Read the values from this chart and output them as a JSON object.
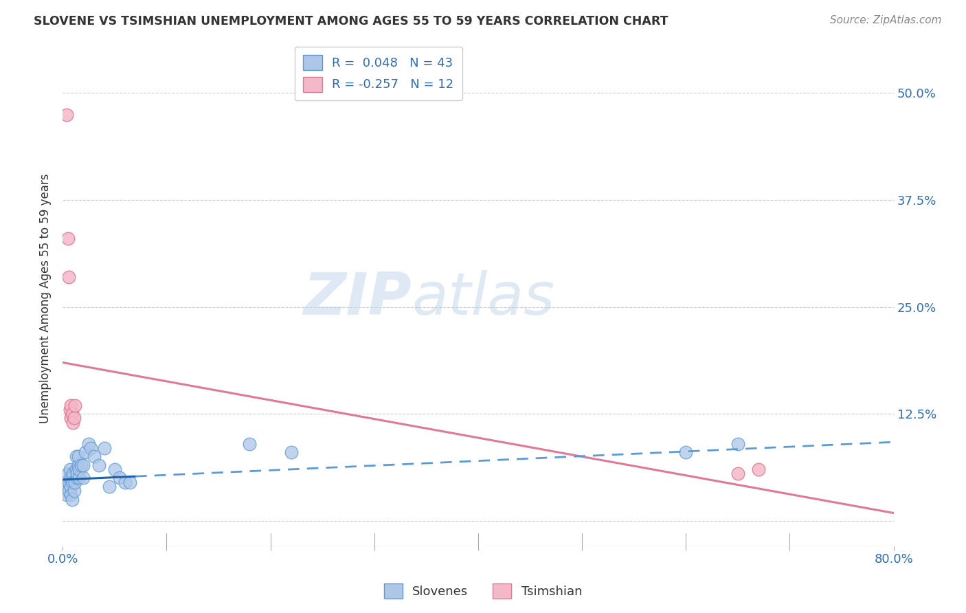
{
  "title": "SLOVENE VS TSIMSHIAN UNEMPLOYMENT AMONG AGES 55 TO 59 YEARS CORRELATION CHART",
  "source": "Source: ZipAtlas.com",
  "ylabel": "Unemployment Among Ages 55 to 59 years",
  "xlim": [
    0.0,
    0.8
  ],
  "ylim": [
    -0.03,
    0.55
  ],
  "xticks": [
    0.0,
    0.1,
    0.2,
    0.3,
    0.4,
    0.5,
    0.6,
    0.7,
    0.8
  ],
  "xticklabels": [
    "0.0%",
    "",
    "",
    "",
    "",
    "",
    "",
    "",
    "80.0%"
  ],
  "ytick_positions": [
    0.0,
    0.125,
    0.25,
    0.375,
    0.5
  ],
  "yticklabels": [
    "",
    "12.5%",
    "25.0%",
    "37.5%",
    "50.0%"
  ],
  "slovene_x": [
    0.0,
    0.003,
    0.004,
    0.005,
    0.005,
    0.006,
    0.006,
    0.007,
    0.007,
    0.008,
    0.008,
    0.009,
    0.009,
    0.01,
    0.01,
    0.011,
    0.012,
    0.013,
    0.013,
    0.014,
    0.014,
    0.015,
    0.015,
    0.016,
    0.016,
    0.018,
    0.02,
    0.02,
    0.022,
    0.025,
    0.027,
    0.03,
    0.035,
    0.04,
    0.045,
    0.05,
    0.055,
    0.06,
    0.065,
    0.18,
    0.22,
    0.6,
    0.65
  ],
  "slovene_y": [
    0.035,
    0.04,
    0.03,
    0.055,
    0.04,
    0.045,
    0.035,
    0.06,
    0.05,
    0.04,
    0.03,
    0.025,
    0.05,
    0.055,
    0.045,
    0.035,
    0.045,
    0.06,
    0.075,
    0.05,
    0.055,
    0.065,
    0.075,
    0.05,
    0.06,
    0.065,
    0.05,
    0.065,
    0.08,
    0.09,
    0.085,
    0.075,
    0.065,
    0.085,
    0.04,
    0.06,
    0.05,
    0.045,
    0.045,
    0.09,
    0.08,
    0.08,
    0.09
  ],
  "tsimshian_x": [
    0.004,
    0.005,
    0.006,
    0.007,
    0.008,
    0.008,
    0.009,
    0.01,
    0.011,
    0.012,
    0.65,
    0.67
  ],
  "tsimshian_y": [
    0.475,
    0.33,
    0.285,
    0.13,
    0.12,
    0.135,
    0.125,
    0.115,
    0.12,
    0.135,
    0.055,
    0.06
  ],
  "slovene_color": "#aec6e8",
  "slovene_edge": "#5b9bd5",
  "tsimshian_color": "#f4b8c8",
  "tsimshian_edge": "#e07898",
  "trend_slovene_solid_color": "#2060a8",
  "trend_slovene_dash_color": "#5b9bd5",
  "trend_tsimshian_color": "#e07898",
  "R_slovene": 0.048,
  "N_slovene": 43,
  "R_tsimshian": -0.257,
  "N_tsimshian": 12,
  "watermark_zip": "ZIP",
  "watermark_atlas": "atlas",
  "background_color": "#ffffff",
  "grid_color": "#cccccc",
  "trend_tsimshian_intercept": 0.185,
  "trend_tsimshian_slope": -0.22,
  "trend_slovene_intercept": 0.048,
  "trend_slovene_slope": 0.055
}
